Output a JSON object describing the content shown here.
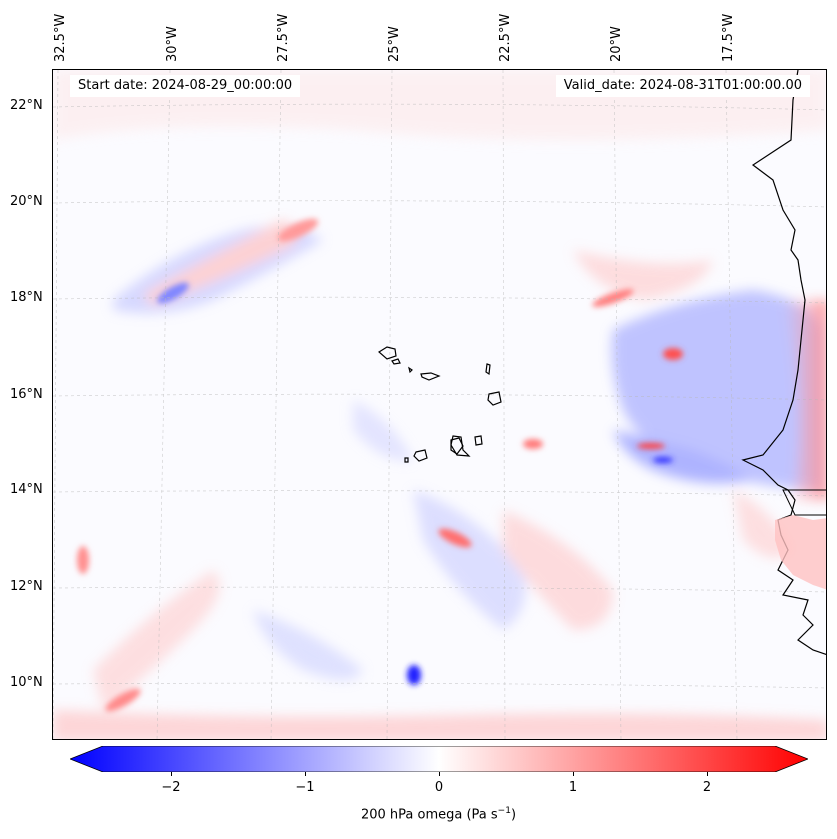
{
  "map": {
    "lon_labels": [
      "32.5°W",
      "30°W",
      "27.5°W",
      "25°W",
      "22.5°W",
      "20°W",
      "17.5°W"
    ],
    "lat_labels": [
      "22°N",
      "20°N",
      "18°N",
      "16°N",
      "14°N",
      "12°N",
      "10°N"
    ],
    "start_date": "Start date: 2024-08-29_00:00:00",
    "valid_date": "Valid_date: 2024-08-31T01:00:00.00",
    "colormap": {
      "negative": "#0000ff",
      "zero": "#ffffff",
      "positive": "#ff0000"
    }
  },
  "colorbar": {
    "ticks": [
      "−2",
      "−1",
      "0",
      "1",
      "2"
    ],
    "label": "200 hPa omega (Pa s",
    "label_sup": "−1",
    "label_end": ")"
  }
}
